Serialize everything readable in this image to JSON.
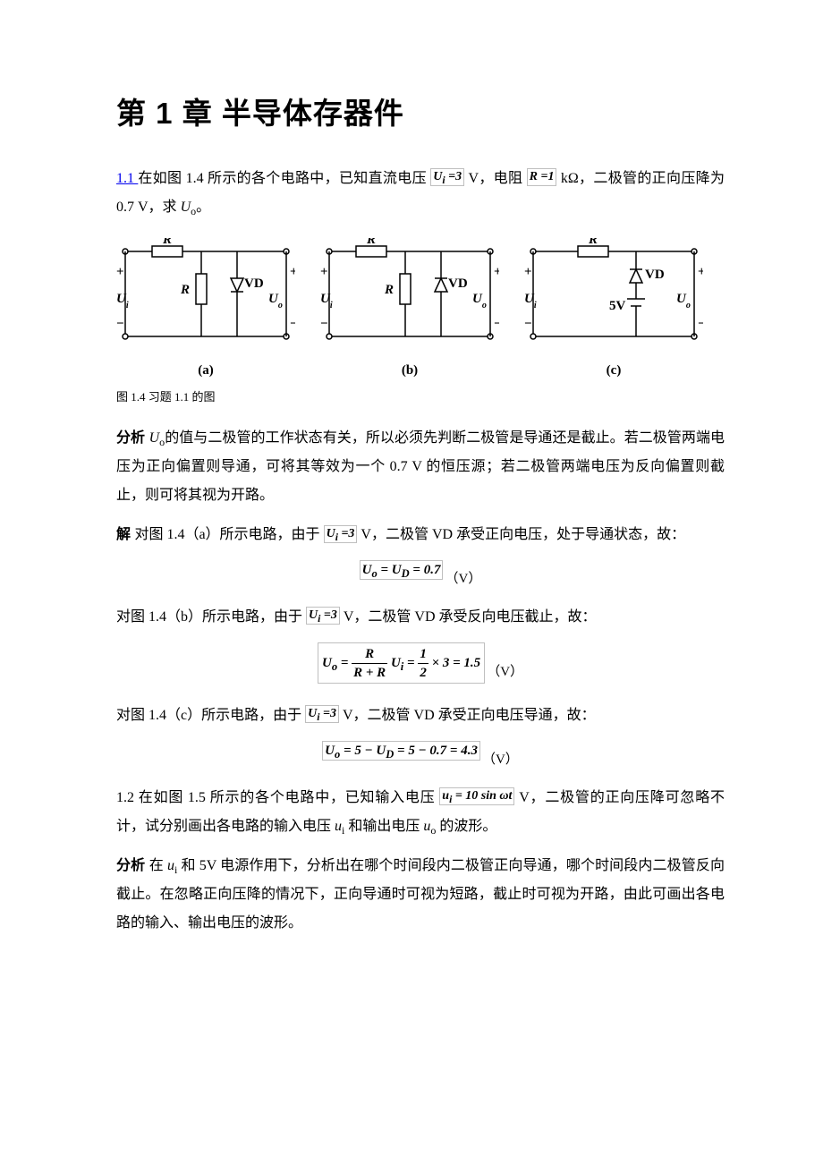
{
  "title": "第 1 章 半导体存器件",
  "p1": {
    "link_label": "1.1 ",
    "text_a": "在如图 1.4 所示的各个电路中，已知直流电压 ",
    "math1": "U<sub>i</sub> =3",
    "text_b": " V，电阻 ",
    "math2": "R =1",
    "text_c": " kΩ，二极管的正向压降为 0.7 V，求 ",
    "uo": "U",
    "uo_sub": "o",
    "text_d": "。"
  },
  "figure": {
    "R": "R",
    "Ui": "U<tspan font-size=\"10\" baseline-shift=\"sub\">i</tspan>",
    "Uo": "U<tspan font-size=\"10\" baseline-shift=\"sub\">o</tspan>",
    "VD": "VD",
    "V5": "5V",
    "labels": [
      "(a)",
      "(b)",
      "(c)"
    ]
  },
  "caption": "图 1.4 习题 1.1 的图",
  "p2": {
    "lead": "分析 ",
    "text": "的值与二极管的工作状态有关，所以必须先判断二极管是导通还是截止。若二极管两端电压为正向偏置则导通，可将其等效为一个 0.7 V 的恒压源；若二极管两端电压为反向偏置则截止，则可将其视为开路。"
  },
  "p3": {
    "lead": "解 ",
    "text_a": "对图 1.4（a）所示电路，由于 ",
    "math": "U<sub>i</sub> =3",
    "text_b": " V，二极管 VD 承受正向电压，处于导通状态，故："
  },
  "eq1": {
    "img": "U<sub>o</sub> = U<sub>D</sub> = 0.7",
    "tail": "（V）"
  },
  "p4": {
    "text_a": "对图 1.4（b）所示电路，由于 ",
    "math": "U<sub>i</sub> =3",
    "text_b": " V，二极管 VD 承受反向电压截止，故："
  },
  "eq2": {
    "lhs": "U<sub>o</sub> =",
    "f1n": "R",
    "f1d": "R + R",
    "mid": "U<sub>i</sub> =",
    "f2n": "1",
    "f2d": "2",
    "rhs": "× 3 = 1.5",
    "tail": "（V）"
  },
  "p5": {
    "text_a": "对图 1.4（c）所示电路，由于 ",
    "math": "U<sub>i</sub> =3",
    "text_b": " V，二极管 VD 承受正向电压导通，故："
  },
  "eq3": {
    "img": "U<sub>o</sub> = 5 − U<sub>D</sub> = 5 − 0.7 = 4.3",
    "tail": "（V）"
  },
  "p6": {
    "text_a": "1.2 在如图 1.5 所示的各个电路中，已知输入电压 ",
    "math": "u<sub>i</sub> = 10 sin ωt",
    "text_b": " V，二极管的正向压降可忽略不计，试分别画出各电路的输入电压 ",
    "ui": "u",
    "ui_sub": "i",
    "text_c": " 和输出电压 ",
    "uo": "u",
    "uo_sub": "o",
    "text_d": " 的波形。"
  },
  "p7": {
    "lead": "分析 ",
    "text_a": "在 ",
    "ui": "u",
    "ui_sub": "i",
    "text_b": " 和 5V 电源作用下，分析出在哪个时间段内二极管正向导通，哪个时间段内二极管反向截止。在忽略正向压降的情况下，正向导通时可视为短路，截止时可视为开路，由此可画出各电路的输入、输出电压的波形。"
  }
}
